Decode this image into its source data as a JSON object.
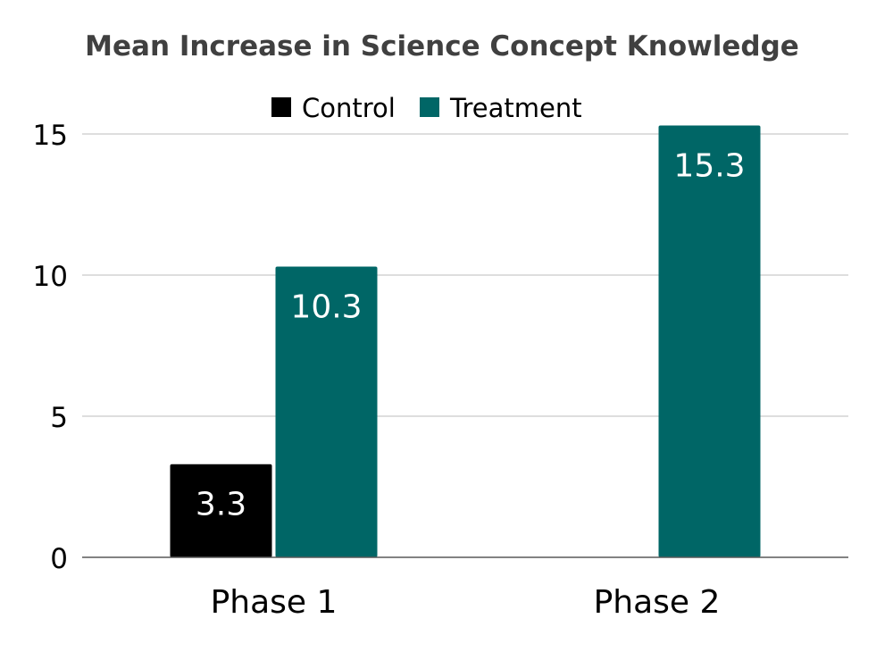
{
  "chart_data": {
    "type": "bar",
    "title": "Mean Increase in Science Concept Knowledge",
    "xlabel": "",
    "ylabel": "",
    "categories": [
      "Phase 1",
      "Phase 2"
    ],
    "series": [
      {
        "name": "Control",
        "values": [
          3.3,
          null
        ],
        "color": "#000000",
        "labels": [
          "3.3",
          ""
        ]
      },
      {
        "name": "Treatment",
        "values": [
          10.3,
          15.3
        ],
        "color": "#006666",
        "labels": [
          "10.3",
          "15.3"
        ]
      }
    ],
    "ylim": [
      0,
      15.3
    ],
    "yticks": [
      0,
      5,
      10,
      15
    ],
    "ytick_labels": [
      "0",
      "5",
      "10",
      "15"
    ],
    "grid": true,
    "legend_position": "top-center",
    "colors": {
      "gridline": "#d4d4d4",
      "axis": "#595959",
      "title": "#404040",
      "text": "#000000",
      "data_label": "#ffffff"
    }
  }
}
